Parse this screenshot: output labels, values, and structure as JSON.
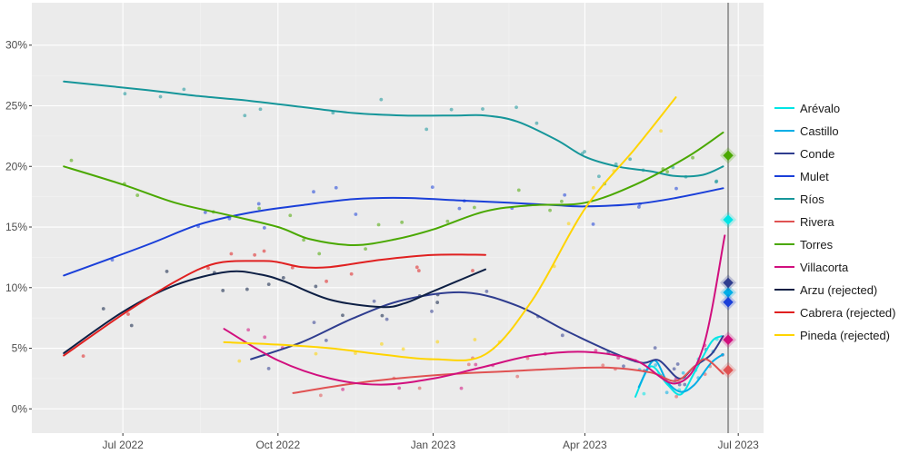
{
  "chart_data": {
    "type": "line",
    "title": "",
    "xlabel": "",
    "ylabel": "",
    "x_domain": [
      "2022-05-08",
      "2023-07-16"
    ],
    "ylim": [
      -0.02,
      0.335
    ],
    "y_ticks": [
      0,
      0.05,
      0.1,
      0.15,
      0.2,
      0.25,
      0.3
    ],
    "y_tick_labels": [
      "0%",
      "5%",
      "10%",
      "15%",
      "20%",
      "25%",
      "30%"
    ],
    "x_ticks": [
      "2022-07-01",
      "2022-10-01",
      "2023-01-01",
      "2023-04-01",
      "2023-07-01"
    ],
    "x_tick_labels": [
      "Jul 2022",
      "Oct 2022",
      "Jan 2023",
      "Apr 2023",
      "Jul 2023"
    ],
    "grid": true,
    "legend_position": "right",
    "election_line_date": "2023-06-25",
    "series": [
      {
        "name": "Arévalo",
        "color": "#00e5e5",
        "points": [
          [
            "2023-05-01",
            0.01
          ],
          [
            "2023-05-10",
            0.035
          ],
          [
            "2023-05-20",
            0.02
          ],
          [
            "2023-05-28",
            0.012
          ],
          [
            "2023-06-05",
            0.03
          ],
          [
            "2023-06-15",
            0.055
          ],
          [
            "2023-06-21",
            0.06
          ]
        ],
        "result": 0.156
      },
      {
        "name": "Castillo",
        "color": "#00aee6",
        "points": [
          [
            "2023-05-03",
            0.018
          ],
          [
            "2023-05-12",
            0.04
          ],
          [
            "2023-05-20",
            0.022
          ],
          [
            "2023-05-28",
            0.014
          ],
          [
            "2023-06-05",
            0.02
          ],
          [
            "2023-06-15",
            0.038
          ],
          [
            "2023-06-22",
            0.045
          ]
        ],
        "result": 0.096
      },
      {
        "name": "Conde",
        "color": "#2f3d8f",
        "points": [
          [
            "2022-09-15",
            0.041
          ],
          [
            "2022-10-15",
            0.055
          ],
          [
            "2022-11-15",
            0.075
          ],
          [
            "2022-12-15",
            0.09
          ],
          [
            "2023-01-20",
            0.096
          ],
          [
            "2023-02-20",
            0.085
          ],
          [
            "2023-03-20",
            0.065
          ],
          [
            "2023-04-20",
            0.045
          ],
          [
            "2023-05-05",
            0.038
          ],
          [
            "2023-05-15",
            0.04
          ],
          [
            "2023-05-27",
            0.025
          ],
          [
            "2023-06-05",
            0.035
          ],
          [
            "2023-06-15",
            0.045
          ],
          [
            "2023-06-22",
            0.06
          ]
        ],
        "result": 0.104
      },
      {
        "name": "Mulet",
        "color": "#1a3fd9",
        "points": [
          [
            "2022-05-27",
            0.11
          ],
          [
            "2022-07-15",
            0.135
          ],
          [
            "2022-08-15",
            0.152
          ],
          [
            "2022-09-15",
            0.162
          ],
          [
            "2022-10-15",
            0.168
          ],
          [
            "2022-11-15",
            0.173
          ],
          [
            "2022-12-15",
            0.174
          ],
          [
            "2023-01-15",
            0.172
          ],
          [
            "2023-02-15",
            0.17
          ],
          [
            "2023-03-15",
            0.168
          ],
          [
            "2023-04-01",
            0.167
          ],
          [
            "2023-05-01",
            0.169
          ],
          [
            "2023-05-25",
            0.174
          ],
          [
            "2023-06-22",
            0.182
          ]
        ],
        "result": 0.088
      },
      {
        "name": "Ríos",
        "color": "#16969a",
        "points": [
          [
            "2022-05-27",
            0.27
          ],
          [
            "2022-07-15",
            0.263
          ],
          [
            "2022-08-15",
            0.258
          ],
          [
            "2022-09-15",
            0.254
          ],
          [
            "2022-10-15",
            0.249
          ],
          [
            "2022-11-15",
            0.244
          ],
          [
            "2022-12-15",
            0.242
          ],
          [
            "2023-01-15",
            0.242
          ],
          [
            "2023-02-01",
            0.242
          ],
          [
            "2023-02-20",
            0.237
          ],
          [
            "2023-03-15",
            0.222
          ],
          [
            "2023-04-01",
            0.208
          ],
          [
            "2023-04-20",
            0.2
          ],
          [
            "2023-05-10",
            0.196
          ],
          [
            "2023-05-25",
            0.192
          ],
          [
            "2023-06-10",
            0.193
          ],
          [
            "2023-06-22",
            0.2
          ]
        ],
        "result": null
      },
      {
        "name": "Rivera",
        "color": "#e05252",
        "points": [
          [
            "2022-10-10",
            0.013
          ],
          [
            "2022-11-10",
            0.02
          ],
          [
            "2022-12-10",
            0.025
          ],
          [
            "2023-01-15",
            0.029
          ],
          [
            "2023-02-15",
            0.031
          ],
          [
            "2023-03-15",
            0.033
          ],
          [
            "2023-04-15",
            0.034
          ],
          [
            "2023-05-10",
            0.03
          ],
          [
            "2023-05-25",
            0.023
          ],
          [
            "2023-06-05",
            0.035
          ],
          [
            "2023-06-12",
            0.041
          ],
          [
            "2023-06-22",
            0.029
          ]
        ],
        "result": 0.032
      },
      {
        "name": "Torres",
        "color": "#4aa800",
        "points": [
          [
            "2022-05-27",
            0.2
          ],
          [
            "2022-07-01",
            0.185
          ],
          [
            "2022-08-01",
            0.17
          ],
          [
            "2022-09-01",
            0.16
          ],
          [
            "2022-10-01",
            0.15
          ],
          [
            "2022-10-20",
            0.14
          ],
          [
            "2022-11-15",
            0.135
          ],
          [
            "2022-12-10",
            0.14
          ],
          [
            "2023-01-01",
            0.148
          ],
          [
            "2023-02-01",
            0.163
          ],
          [
            "2023-03-01",
            0.168
          ],
          [
            "2023-04-01",
            0.17
          ],
          [
            "2023-05-01",
            0.185
          ],
          [
            "2023-06-01",
            0.208
          ],
          [
            "2023-06-22",
            0.228
          ]
        ],
        "result": 0.209
      },
      {
        "name": "Villacorta",
        "color": "#d10f7e",
        "points": [
          [
            "2022-08-30",
            0.066
          ],
          [
            "2022-10-01",
            0.04
          ],
          [
            "2022-11-01",
            0.025
          ],
          [
            "2022-12-01",
            0.02
          ],
          [
            "2023-01-01",
            0.025
          ],
          [
            "2023-02-01",
            0.035
          ],
          [
            "2023-03-01",
            0.044
          ],
          [
            "2023-04-01",
            0.047
          ],
          [
            "2023-05-01",
            0.04
          ],
          [
            "2023-05-25",
            0.021
          ],
          [
            "2023-06-10",
            0.05
          ],
          [
            "2023-06-23",
            0.143
          ]
        ],
        "result": 0.057
      },
      {
        "name": "Arzu (rejected)",
        "color": "#0d1f44",
        "points": [
          [
            "2022-05-27",
            0.046
          ],
          [
            "2022-07-01",
            0.08
          ],
          [
            "2022-08-01",
            0.102
          ],
          [
            "2022-09-01",
            0.113
          ],
          [
            "2022-09-20",
            0.111
          ],
          [
            "2022-10-05",
            0.105
          ],
          [
            "2022-11-01",
            0.09
          ],
          [
            "2022-12-01",
            0.084
          ],
          [
            "2022-12-15",
            0.087
          ],
          [
            "2023-01-01",
            0.097
          ],
          [
            "2023-02-01",
            0.115
          ]
        ],
        "result": null
      },
      {
        "name": "Cabrera (rejected)",
        "color": "#e02020",
        "points": [
          [
            "2022-05-27",
            0.044
          ],
          [
            "2022-07-01",
            0.078
          ],
          [
            "2022-08-01",
            0.105
          ],
          [
            "2022-08-25",
            0.12
          ],
          [
            "2022-09-20",
            0.122
          ],
          [
            "2022-10-01",
            0.121
          ],
          [
            "2022-10-15",
            0.117
          ],
          [
            "2022-11-01",
            0.117
          ],
          [
            "2022-12-01",
            0.123
          ],
          [
            "2023-01-01",
            0.127
          ],
          [
            "2023-02-01",
            0.127
          ]
        ],
        "result": null
      },
      {
        "name": "Pineda (rejected)",
        "color": "#ffd400",
        "points": [
          [
            "2022-08-30",
            0.055
          ],
          [
            "2022-10-01",
            0.053
          ],
          [
            "2022-11-01",
            0.05
          ],
          [
            "2022-12-01",
            0.045
          ],
          [
            "2023-01-01",
            0.041
          ],
          [
            "2023-02-01",
            0.045
          ],
          [
            "2023-03-01",
            0.09
          ],
          [
            "2023-04-01",
            0.165
          ],
          [
            "2023-05-01",
            0.215
          ],
          [
            "2023-05-25",
            0.257
          ]
        ],
        "result": null
      }
    ]
  }
}
